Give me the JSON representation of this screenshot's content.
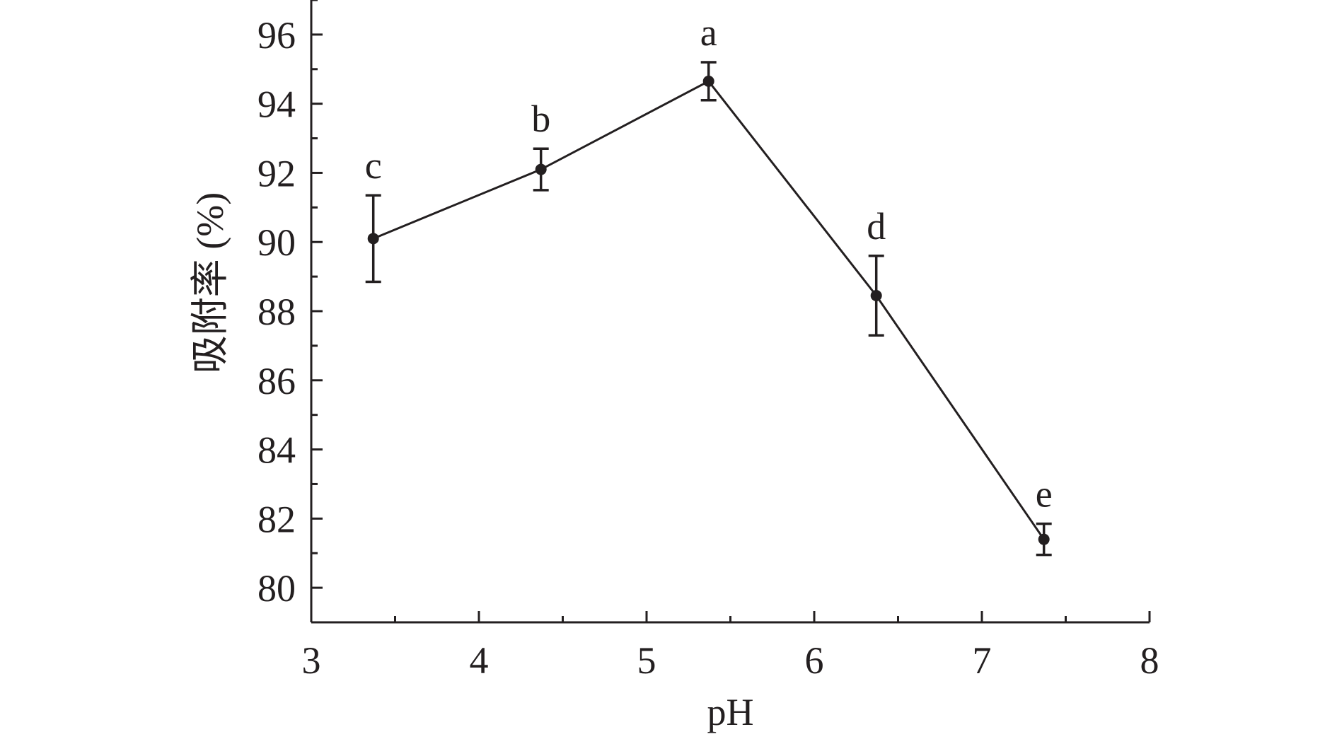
{
  "chart_data": {
    "type": "line",
    "title": "",
    "xlabel": "pH",
    "ylabel": "吸附率 (%)",
    "xlim": [
      3,
      8
    ],
    "ylim": [
      79,
      97
    ],
    "x_ticks": [
      3,
      4,
      5,
      6,
      7,
      8
    ],
    "y_ticks": [
      80,
      82,
      84,
      86,
      88,
      90,
      92,
      94,
      96
    ],
    "grid": false,
    "series": [
      {
        "x": [
          3.37,
          4.37,
          5.37,
          6.37,
          7.37
        ],
        "y": [
          90.1,
          92.1,
          94.65,
          88.45,
          81.4
        ],
        "error": [
          1.25,
          0.6,
          0.55,
          1.15,
          0.45
        ],
        "labels": [
          "c",
          "b",
          "a",
          "d",
          "e"
        ],
        "color": "#231f20"
      }
    ]
  }
}
